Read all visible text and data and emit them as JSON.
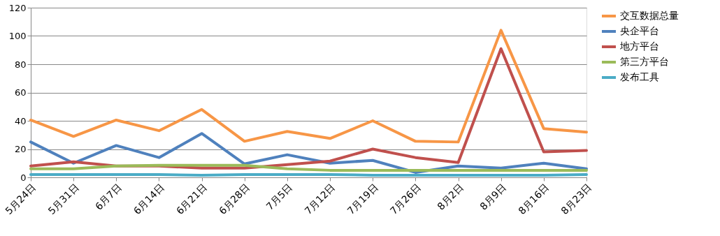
{
  "chart_data": {
    "type": "line",
    "categories": [
      "5月24日",
      "5月31日",
      "6月7日",
      "6月14日",
      "6月21日",
      "6月28日",
      "7月5日",
      "7月12日",
      "7月19日",
      "7月26日",
      "8月2日",
      "8月9日",
      "8月16日",
      "8月23日"
    ],
    "series": [
      {
        "name": "交互数据总量",
        "color": "#f79646",
        "values": [
          40.5,
          29,
          40.5,
          33,
          48,
          25.5,
          32.5,
          27.5,
          40,
          25.5,
          25,
          104,
          34.5,
          32
        ]
      },
      {
        "name": "央企平台",
        "color": "#4f81bd",
        "values": [
          25,
          10,
          22.5,
          14,
          31,
          9.5,
          16,
          10,
          12,
          3.5,
          8,
          6.5,
          10,
          6
        ]
      },
      {
        "name": "地方平台",
        "color": "#c0504d",
        "values": [
          8,
          11,
          8,
          8,
          6.5,
          6.5,
          9,
          11.5,
          20,
          14,
          10.5,
          91,
          18,
          19
        ]
      },
      {
        "name": "第三方平台",
        "color": "#9bbb59",
        "values": [
          6,
          6,
          8,
          8.5,
          8.5,
          8.5,
          6,
          5,
          5,
          5,
          5,
          5,
          5,
          5
        ]
      },
      {
        "name": "发布工具",
        "color": "#4bacc6",
        "values": [
          2,
          2,
          2,
          2,
          1.5,
          2,
          2,
          2,
          1.5,
          1.5,
          1.5,
          1.5,
          1.5,
          2
        ]
      }
    ],
    "ylim": [
      0,
      120
    ],
    "yticks": [
      0,
      20,
      40,
      60,
      80,
      100,
      120
    ],
    "grid": "y",
    "legend": "right",
    "marker": "none",
    "line_style": "solid"
  }
}
